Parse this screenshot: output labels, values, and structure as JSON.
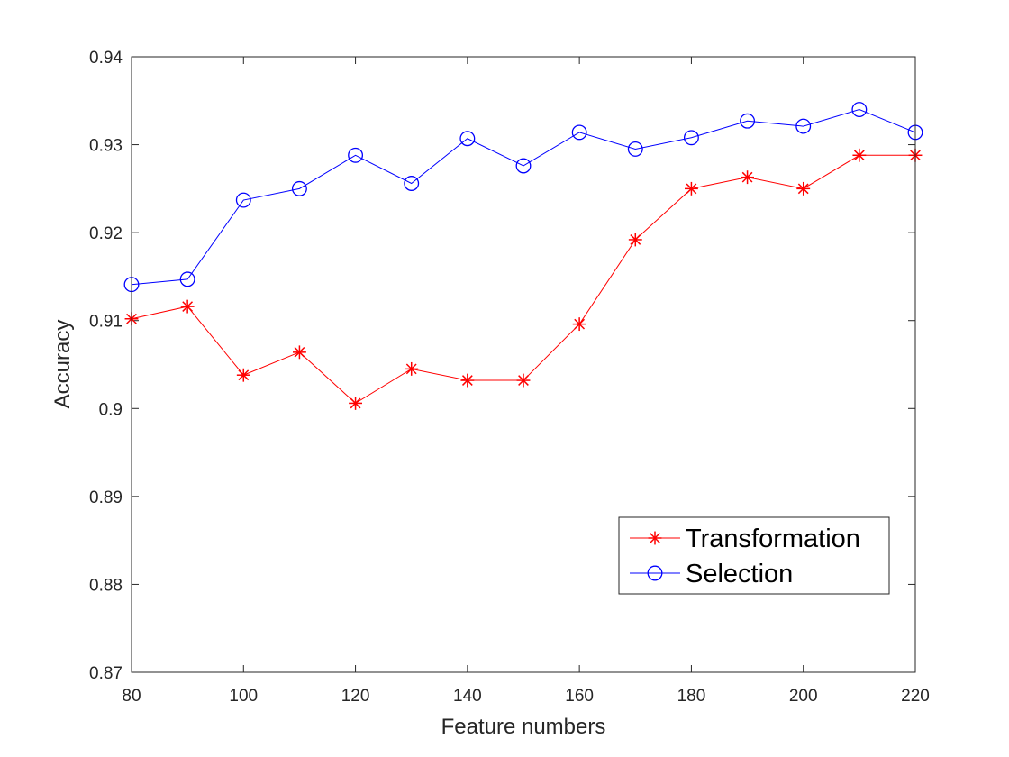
{
  "chart_data": {
    "type": "line",
    "title": "",
    "xlabel": "Feature numbers",
    "ylabel": "Accuracy",
    "xlim": [
      80,
      220
    ],
    "ylim": [
      0.87,
      0.94
    ],
    "x": [
      80,
      90,
      100,
      110,
      120,
      130,
      140,
      150,
      160,
      170,
      180,
      190,
      200,
      210,
      220
    ],
    "x_ticks": [
      80,
      100,
      120,
      140,
      160,
      180,
      200,
      220
    ],
    "x_tick_labels": [
      "80",
      "100",
      "120",
      "140",
      "160",
      "180",
      "200",
      "220"
    ],
    "y_ticks": [
      0.87,
      0.88,
      0.89,
      0.9,
      0.91,
      0.92,
      0.93,
      0.94
    ],
    "y_tick_labels": [
      "0.87",
      "0.88",
      "0.89",
      "0.9",
      "0.91",
      "0.92",
      "0.93",
      "0.94"
    ],
    "grid": false,
    "box": true,
    "legend_position": "bottom-right",
    "series": [
      {
        "name": "Transformation",
        "color": "#ff0000",
        "marker": "asterisk",
        "values": [
          0.9102,
          0.9116,
          0.9038,
          0.9064,
          0.9006,
          0.9045,
          0.9032,
          0.9032,
          0.9096,
          0.9192,
          0.925,
          0.9263,
          0.925,
          0.9288,
          0.9288
        ]
      },
      {
        "name": "Selection",
        "color": "#0000ff",
        "marker": "circle",
        "values": [
          0.9141,
          0.9147,
          0.9237,
          0.925,
          0.9288,
          0.9256,
          0.9307,
          0.9276,
          0.9314,
          0.9295,
          0.9308,
          0.9327,
          0.9321,
          0.934,
          0.9314
        ]
      }
    ]
  }
}
